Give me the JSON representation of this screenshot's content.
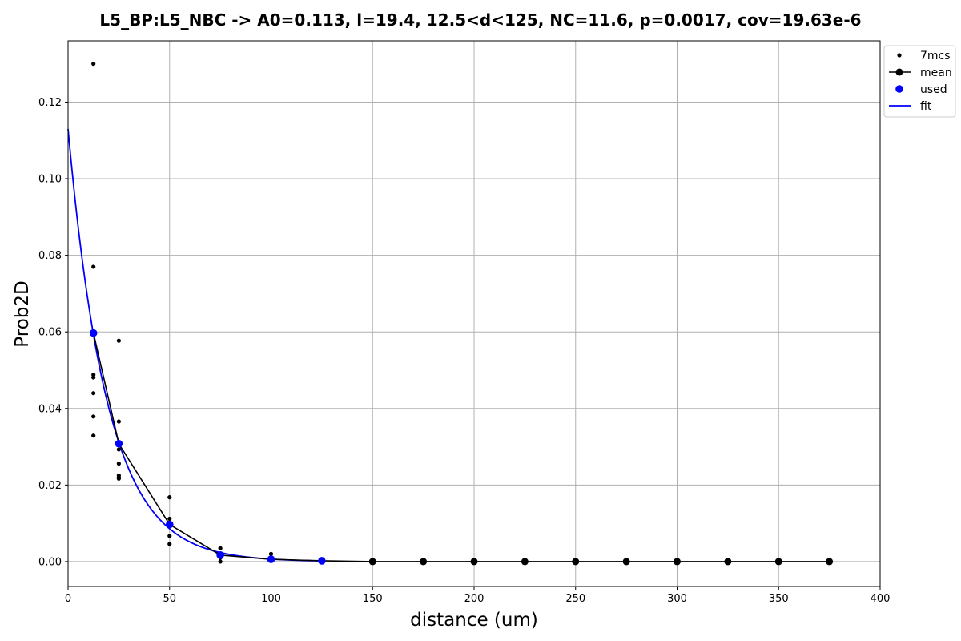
{
  "chart_data": {
    "type": "scatter",
    "title": "L5_BP:L5_NBC -> A0=0.113, l=19.4, 12.5<d<125, NC=11.6, p=0.0017, cov=19.63e-6",
    "xlabel": "distance (um)",
    "ylabel": "Prob2D",
    "xlim": [
      0,
      400
    ],
    "ylim": [
      -0.0065,
      0.136
    ],
    "xticks": [
      0,
      50,
      100,
      150,
      200,
      250,
      300,
      350,
      400
    ],
    "yticks": [
      0.0,
      0.02,
      0.04,
      0.06,
      0.08,
      0.1,
      0.12
    ],
    "ytick_labels": [
      "0.00",
      "0.02",
      "0.04",
      "0.06",
      "0.08",
      "0.10",
      "0.12"
    ],
    "grid": true,
    "legend_position": "top-right",
    "series": [
      {
        "name": "7mcs",
        "kind": "scatter",
        "color": "#000000",
        "points": [
          [
            12.5,
            0.13
          ],
          [
            12.5,
            0.077
          ],
          [
            12.5,
            0.0488
          ],
          [
            12.5,
            0.0481
          ],
          [
            12.5,
            0.044
          ],
          [
            12.5,
            0.0379
          ],
          [
            12.5,
            0.0329
          ],
          [
            25,
            0.0577
          ],
          [
            25,
            0.0366
          ],
          [
            25,
            0.0293
          ],
          [
            25,
            0.0256
          ],
          [
            25,
            0.0225
          ],
          [
            25,
            0.022
          ],
          [
            25,
            0.0217
          ],
          [
            50,
            0.0168
          ],
          [
            50,
            0.0112
          ],
          [
            50,
            0.0098
          ],
          [
            50,
            0.0067
          ],
          [
            50,
            0.0046
          ],
          [
            75,
            0.0035
          ],
          [
            75,
            0.002
          ],
          [
            75,
            0.001
          ],
          [
            75,
            0.0
          ],
          [
            100,
            0.002
          ],
          [
            100,
            0.0005
          ],
          [
            125,
            0.0003
          ]
        ]
      },
      {
        "name": "mean",
        "kind": "line-marker",
        "color": "#000000",
        "x": [
          12.5,
          25,
          50,
          75,
          100,
          125,
          150,
          175,
          200,
          225,
          250,
          275,
          300,
          325,
          350,
          375
        ],
        "y": [
          0.0597,
          0.0308,
          0.0097,
          0.0017,
          0.0006,
          0.0002,
          0.0,
          0.0,
          0.0,
          0.0,
          0.0,
          0.0,
          0.0,
          0.0,
          0.0,
          0.0
        ]
      },
      {
        "name": "used",
        "kind": "marker",
        "color": "#0000ff",
        "x": [
          12.5,
          25,
          50,
          75,
          100,
          125
        ],
        "y": [
          0.0597,
          0.0308,
          0.0097,
          0.0017,
          0.0006,
          0.0002
        ]
      },
      {
        "name": "fit",
        "kind": "curve",
        "color": "#0000ff",
        "A0": 0.113,
        "l": 19.4,
        "x_range": [
          0,
          125
        ]
      }
    ]
  }
}
